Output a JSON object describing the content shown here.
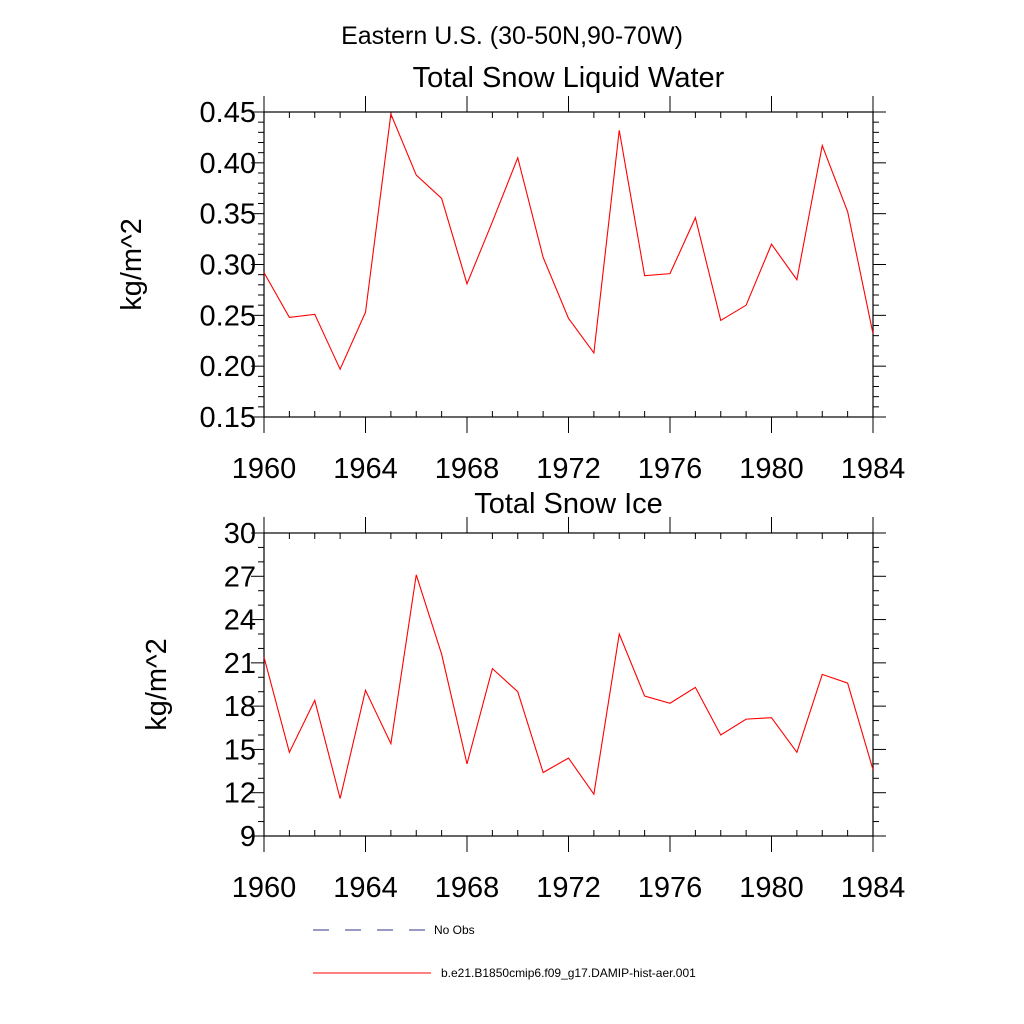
{
  "figure": {
    "suptitle": "Eastern U.S. (30-50N,90-70W)",
    "series_color": "#ff0000",
    "obs_color": "#33338c"
  },
  "legend": {
    "items": [
      {
        "label": "No Obs",
        "style": "dashed"
      },
      {
        "label": "b.e21.B1850cmip6.f09_g17.DAMIP-hist-aer.001",
        "style": "solid"
      }
    ]
  },
  "chart_data": [
    {
      "type": "line",
      "title": "Total Snow Liquid Water",
      "ylabel": "kg/m^2",
      "xlabel": "",
      "xlim": [
        1960,
        1984
      ],
      "ylim": [
        0.15,
        0.45
      ],
      "xticks": [
        1960,
        1964,
        1968,
        1972,
        1976,
        1980,
        1984
      ],
      "yticks": [
        0.15,
        0.2,
        0.25,
        0.3,
        0.35,
        0.4,
        0.45
      ],
      "ytick_labels": [
        "0.15",
        "0.20",
        "0.25",
        "0.30",
        "0.35",
        "0.40",
        "0.45"
      ],
      "y_minor_step": 0.01,
      "x_minor_step": 1,
      "series": [
        {
          "name": "b.e21.B1850cmip6.f09_g17.DAMIP-hist-aer.001",
          "x": [
            1960,
            1961,
            1962,
            1963,
            1964,
            1965,
            1966,
            1967,
            1968,
            1969,
            1970,
            1971,
            1972,
            1973,
            1974,
            1975,
            1976,
            1977,
            1978,
            1979,
            1980,
            1981,
            1982,
            1983,
            1984
          ],
          "values": [
            0.292,
            0.248,
            0.251,
            0.197,
            0.253,
            0.448,
            0.388,
            0.365,
            0.281,
            0.342,
            0.405,
            0.307,
            0.247,
            0.213,
            0.432,
            0.289,
            0.291,
            0.346,
            0.245,
            0.26,
            0.32,
            0.285,
            0.417,
            0.352,
            0.232
          ]
        }
      ]
    },
    {
      "type": "line",
      "title": "Total Snow Ice",
      "ylabel": "kg/m^2",
      "xlabel": "",
      "xlim": [
        1960,
        1984
      ],
      "ylim": [
        9,
        30
      ],
      "xticks": [
        1960,
        1964,
        1968,
        1972,
        1976,
        1980,
        1984
      ],
      "yticks": [
        9,
        12,
        15,
        18,
        21,
        24,
        27,
        30
      ],
      "ytick_labels": [
        "9",
        "12",
        "15",
        "18",
        "21",
        "24",
        "27",
        "30"
      ],
      "y_minor_step": 1,
      "x_minor_step": 1,
      "series": [
        {
          "name": "b.e21.B1850cmip6.f09_g17.DAMIP-hist-aer.001",
          "x": [
            1960,
            1961,
            1962,
            1963,
            1964,
            1965,
            1966,
            1967,
            1968,
            1969,
            1970,
            1971,
            1972,
            1973,
            1974,
            1975,
            1976,
            1977,
            1978,
            1979,
            1980,
            1981,
            1982,
            1983,
            1984
          ],
          "values": [
            21.4,
            14.8,
            18.4,
            11.6,
            19.1,
            15.4,
            27.1,
            21.6,
            14.0,
            20.6,
            19.0,
            13.4,
            14.4,
            11.9,
            23.0,
            18.7,
            18.2,
            19.3,
            16.0,
            17.1,
            17.2,
            14.8,
            20.2,
            19.6,
            13.6
          ]
        }
      ]
    }
  ]
}
